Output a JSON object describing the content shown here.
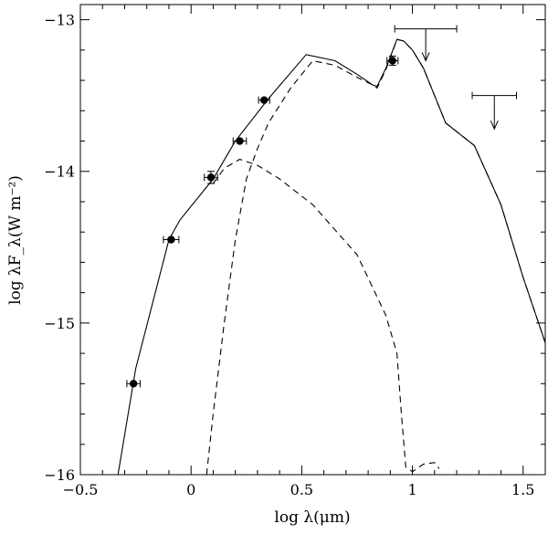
{
  "chart_data": {
    "type": "line",
    "title": "",
    "xlabel": "log λ(μm)",
    "ylabel": "log λF_λ(W m⁻²)",
    "xlim": [
      -0.5,
      1.6
    ],
    "ylim": [
      -16,
      -12.9
    ],
    "x_ticks": [
      {
        "value": -0.5,
        "label": "−0.5"
      },
      {
        "value": 0,
        "label": "0"
      },
      {
        "value": 0.5,
        "label": "0.5"
      },
      {
        "value": 1,
        "label": "1"
      },
      {
        "value": 1.5,
        "label": "1.5"
      }
    ],
    "y_ticks": [
      {
        "value": -13,
        "label": "−13"
      },
      {
        "value": -14,
        "label": "−14"
      },
      {
        "value": -15,
        "label": "−15"
      },
      {
        "value": -16,
        "label": "−16"
      }
    ],
    "series": [
      {
        "style": "solid",
        "x": [
          -0.33,
          -0.25,
          -0.1,
          -0.05,
          0.1,
          0.2,
          0.35,
          0.52,
          0.65,
          0.75,
          0.82,
          0.84,
          0.88,
          0.93,
          0.96,
          1.0,
          1.05,
          1.1,
          1.15,
          1.28,
          1.4,
          1.5,
          1.6
        ],
        "y": [
          -16.0,
          -15.3,
          -14.45,
          -14.32,
          -14.05,
          -13.8,
          -13.52,
          -13.23,
          -13.27,
          -13.36,
          -13.43,
          -13.44,
          -13.32,
          -13.13,
          -13.14,
          -13.2,
          -13.32,
          -13.5,
          -13.68,
          -13.83,
          -14.22,
          -14.7,
          -15.13
        ]
      },
      {
        "style": "dashed",
        "x": [
          0.07,
          0.1,
          0.15,
          0.2,
          0.25,
          0.3,
          0.35,
          0.45,
          0.55,
          0.65,
          0.75,
          0.82,
          0.84,
          0.88,
          0.93,
          0.96,
          1.0,
          1.05,
          1.1,
          1.15,
          1.28,
          1.4,
          1.5,
          1.6
        ],
        "y": [
          -16.0,
          -15.6,
          -15.0,
          -14.45,
          -14.05,
          -13.85,
          -13.68,
          -13.45,
          -13.27,
          -13.3,
          -13.38,
          -13.43,
          -13.45,
          -13.33,
          -13.13,
          -13.14,
          -13.2,
          -13.32,
          -13.5,
          -13.68,
          -13.83,
          -14.22,
          -14.7,
          -15.13
        ]
      },
      {
        "style": "dashed",
        "x": [
          0.1,
          0.15,
          0.22,
          0.3,
          0.4,
          0.55,
          0.75,
          0.88,
          0.93,
          0.95,
          0.97,
          1.0,
          1.05,
          1.1,
          1.12
        ],
        "y": [
          -14.08,
          -13.98,
          -13.92,
          -13.96,
          -14.05,
          -14.22,
          -14.55,
          -14.95,
          -15.2,
          -15.6,
          -15.95,
          -15.98,
          -15.93,
          -15.92,
          -15.96
        ]
      }
    ],
    "data_points": [
      {
        "x": -0.26,
        "y": -15.4,
        "xerr": 0.03,
        "yerr": 0
      },
      {
        "x": -0.09,
        "y": -14.45,
        "xerr": 0.035,
        "yerr": 0
      },
      {
        "x": 0.09,
        "y": -14.04,
        "xerr": 0.03,
        "yerr": 0.04
      },
      {
        "x": 0.22,
        "y": -13.8,
        "xerr": 0.03,
        "yerr": 0
      },
      {
        "x": 0.33,
        "y": -13.53,
        "xerr": 0.025,
        "yerr": 0
      },
      {
        "x": 0.91,
        "y": -13.27,
        "xerr": 0.025,
        "yerr": 0.03
      }
    ],
    "upper_limits": [
      {
        "x": 1.06,
        "y": -13.06,
        "xerr": 0.14,
        "arrow_to": -13.27
      },
      {
        "x": 1.37,
        "y": -13.5,
        "xerr": 0.1,
        "arrow_to": -13.72
      }
    ],
    "grid": false,
    "legend": "none"
  }
}
